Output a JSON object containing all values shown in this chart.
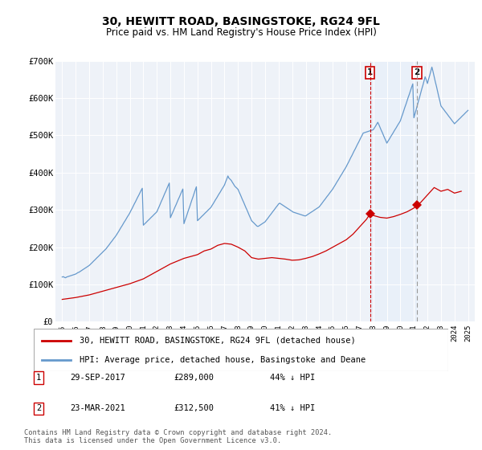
{
  "title": "30, HEWITT ROAD, BASINGSTOKE, RG24 9FL",
  "subtitle": "Price paid vs. HM Land Registry's House Price Index (HPI)",
  "hpi_color": "#6699cc",
  "price_color": "#cc0000",
  "marker_color": "#cc0000",
  "dashed_color_1": "#cc0000",
  "dashed_color_2": "#999999",
  "shade_color": "#ddeeff",
  "background_color": "#eef2f8",
  "grid_color": "#ffffff",
  "ylim": [
    0,
    700000
  ],
  "yticks": [
    0,
    100000,
    200000,
    300000,
    400000,
    500000,
    600000,
    700000
  ],
  "ytick_labels": [
    "£0",
    "£100K",
    "£200K",
    "£300K",
    "£400K",
    "£500K",
    "£600K",
    "£700K"
  ],
  "legend_entries": [
    "30, HEWITT ROAD, BASINGSTOKE, RG24 9FL (detached house)",
    "HPI: Average price, detached house, Basingstoke and Deane"
  ],
  "transactions": [
    {
      "label": "1",
      "date": "29-SEP-2017",
      "price": "£289,000",
      "hpi": "44% ↓ HPI",
      "year": 2017.75
    },
    {
      "label": "2",
      "date": "23-MAR-2021",
      "price": "£312,500",
      "hpi": "41% ↓ HPI",
      "year": 2021.22
    }
  ],
  "transaction_prices": [
    289000,
    312500
  ],
  "footer": "Contains HM Land Registry data © Crown copyright and database right 2024.\nThis data is licensed under the Open Government Licence v3.0.",
  "hpi_x": [
    1995.0,
    1995.08,
    1995.17,
    1995.25,
    1995.33,
    1995.42,
    1995.5,
    1995.58,
    1995.67,
    1995.75,
    1995.83,
    1995.92,
    1996.0,
    1996.08,
    1996.17,
    1996.25,
    1996.33,
    1996.42,
    1996.5,
    1996.58,
    1996.67,
    1996.75,
    1996.83,
    1996.92,
    1997.0,
    1997.08,
    1997.17,
    1997.25,
    1997.33,
    1997.42,
    1997.5,
    1997.58,
    1997.67,
    1997.75,
    1997.83,
    1997.92,
    1998.0,
    1998.08,
    1998.17,
    1998.25,
    1998.33,
    1998.42,
    1998.5,
    1998.58,
    1998.67,
    1998.75,
    1998.83,
    1998.92,
    1999.0,
    1999.08,
    1999.17,
    1999.25,
    1999.33,
    1999.42,
    1999.5,
    1999.58,
    1999.67,
    1999.75,
    1999.83,
    1999.92,
    2000.0,
    2000.08,
    2000.17,
    2000.25,
    2000.33,
    2000.42,
    2000.5,
    2000.58,
    2000.67,
    2000.75,
    2000.83,
    2000.92,
    2001.0,
    2001.08,
    2001.17,
    2001.25,
    2001.33,
    2001.42,
    2001.5,
    2001.58,
    2001.67,
    2001.75,
    2001.83,
    2001.92,
    2002.0,
    2002.08,
    2002.17,
    2002.25,
    2002.33,
    2002.42,
    2002.5,
    2002.58,
    2002.67,
    2002.75,
    2002.83,
    2002.92,
    2003.0,
    2003.08,
    2003.17,
    2003.25,
    2003.33,
    2003.42,
    2003.5,
    2003.58,
    2003.67,
    2003.75,
    2003.83,
    2003.92,
    2004.0,
    2004.08,
    2004.17,
    2004.25,
    2004.33,
    2004.42,
    2004.5,
    2004.58,
    2004.67,
    2004.75,
    2004.83,
    2004.92,
    2005.0,
    2005.08,
    2005.17,
    2005.25,
    2005.33,
    2005.42,
    2005.5,
    2005.58,
    2005.67,
    2005.75,
    2005.83,
    2005.92,
    2006.0,
    2006.08,
    2006.17,
    2006.25,
    2006.33,
    2006.42,
    2006.5,
    2006.58,
    2006.67,
    2006.75,
    2006.83,
    2006.92,
    2007.0,
    2007.08,
    2007.17,
    2007.25,
    2007.33,
    2007.42,
    2007.5,
    2007.58,
    2007.67,
    2007.75,
    2007.83,
    2007.92,
    2008.0,
    2008.08,
    2008.17,
    2008.25,
    2008.33,
    2008.42,
    2008.5,
    2008.58,
    2008.67,
    2008.75,
    2008.83,
    2008.92,
    2009.0,
    2009.08,
    2009.17,
    2009.25,
    2009.33,
    2009.42,
    2009.5,
    2009.58,
    2009.67,
    2009.75,
    2009.83,
    2009.92,
    2010.0,
    2010.08,
    2010.17,
    2010.25,
    2010.33,
    2010.42,
    2010.5,
    2010.58,
    2010.67,
    2010.75,
    2010.83,
    2010.92,
    2011.0,
    2011.08,
    2011.17,
    2011.25,
    2011.33,
    2011.42,
    2011.5,
    2011.58,
    2011.67,
    2011.75,
    2011.83,
    2011.92,
    2012.0,
    2012.08,
    2012.17,
    2012.25,
    2012.33,
    2012.42,
    2012.5,
    2012.58,
    2012.67,
    2012.75,
    2012.83,
    2012.92,
    2013.0,
    2013.08,
    2013.17,
    2013.25,
    2013.33,
    2013.42,
    2013.5,
    2013.58,
    2013.67,
    2013.75,
    2013.83,
    2013.92,
    2014.0,
    2014.08,
    2014.17,
    2014.25,
    2014.33,
    2014.42,
    2014.5,
    2014.58,
    2014.67,
    2014.75,
    2014.83,
    2014.92,
    2015.0,
    2015.08,
    2015.17,
    2015.25,
    2015.33,
    2015.42,
    2015.5,
    2015.58,
    2015.67,
    2015.75,
    2015.83,
    2015.92,
    2016.0,
    2016.08,
    2016.17,
    2016.25,
    2016.33,
    2016.42,
    2016.5,
    2016.58,
    2016.67,
    2016.75,
    2016.83,
    2016.92,
    2017.0,
    2017.08,
    2017.17,
    2017.25,
    2017.33,
    2017.42,
    2017.5,
    2017.58,
    2017.67,
    2017.75,
    2017.83,
    2017.92,
    2018.0,
    2018.08,
    2018.17,
    2018.25,
    2018.33,
    2018.42,
    2018.5,
    2018.58,
    2018.67,
    2018.75,
    2018.83,
    2018.92,
    2019.0,
    2019.08,
    2019.17,
    2019.25,
    2019.33,
    2019.42,
    2019.5,
    2019.58,
    2019.67,
    2019.75,
    2019.83,
    2019.92,
    2020.0,
    2020.08,
    2020.17,
    2020.25,
    2020.33,
    2020.42,
    2020.5,
    2020.58,
    2020.67,
    2020.75,
    2020.83,
    2020.92,
    2021.0,
    2021.08,
    2021.17,
    2021.25,
    2021.33,
    2021.42,
    2021.5,
    2021.58,
    2021.67,
    2021.75,
    2021.83,
    2021.92,
    2022.0,
    2022.08,
    2022.17,
    2022.25,
    2022.33,
    2022.42,
    2022.5,
    2022.58,
    2022.67,
    2022.75,
    2022.83,
    2022.92,
    2023.0,
    2023.08,
    2023.17,
    2023.25,
    2023.33,
    2023.42,
    2023.5,
    2023.58,
    2023.67,
    2023.75,
    2023.83,
    2023.92,
    2024.0,
    2024.08,
    2024.17,
    2024.25,
    2024.33,
    2024.42,
    2024.5,
    2024.58,
    2024.67,
    2024.75,
    2024.83,
    2024.92,
    2025.0
  ],
  "hpi_y": [
    120000,
    121000,
    119000,
    118000,
    120000,
    121000,
    122000,
    123000,
    124000,
    125000,
    126000,
    127000,
    128000,
    130000,
    132000,
    133000,
    135000,
    137000,
    139000,
    141000,
    143000,
    145000,
    147000,
    149000,
    151000,
    154000,
    157000,
    160000,
    163000,
    166000,
    169000,
    172000,
    175000,
    178000,
    181000,
    184000,
    187000,
    190000,
    193000,
    196000,
    200000,
    204000,
    208000,
    212000,
    216000,
    220000,
    224000,
    228000,
    232000,
    237000,
    242000,
    247000,
    252000,
    257000,
    262000,
    267000,
    272000,
    277000,
    282000,
    287000,
    292000,
    298000,
    304000,
    310000,
    316000,
    322000,
    328000,
    334000,
    340000,
    346000,
    352000,
    358000,
    259000,
    262000,
    265000,
    268000,
    271000,
    274000,
    277000,
    280000,
    283000,
    286000,
    289000,
    292000,
    295000,
    302000,
    309000,
    316000,
    323000,
    330000,
    337000,
    344000,
    351000,
    358000,
    365000,
    372000,
    279000,
    286000,
    293000,
    300000,
    307000,
    314000,
    321000,
    328000,
    335000,
    342000,
    349000,
    356000,
    263000,
    272000,
    281000,
    290000,
    299000,
    308000,
    317000,
    326000,
    335000,
    344000,
    353000,
    362000,
    271000,
    274000,
    277000,
    280000,
    283000,
    286000,
    289000,
    292000,
    295000,
    298000,
    301000,
    304000,
    307000,
    312000,
    317000,
    322000,
    327000,
    332000,
    337000,
    342000,
    347000,
    352000,
    357000,
    362000,
    367000,
    375000,
    383000,
    391000,
    385000,
    382000,
    379000,
    374000,
    369000,
    364000,
    361000,
    358000,
    355000,
    348000,
    341000,
    334000,
    327000,
    320000,
    313000,
    306000,
    299000,
    292000,
    285000,
    278000,
    271000,
    268000,
    265000,
    262000,
    259000,
    256000,
    256000,
    258000,
    260000,
    262000,
    264000,
    266000,
    268000,
    272000,
    276000,
    280000,
    284000,
    288000,
    292000,
    296000,
    300000,
    304000,
    308000,
    312000,
    316000,
    318000,
    316000,
    314000,
    312000,
    310000,
    308000,
    306000,
    304000,
    302000,
    300000,
    298000,
    296000,
    294000,
    293000,
    292000,
    291000,
    290000,
    289000,
    288000,
    287000,
    286000,
    285000,
    284000,
    284000,
    286000,
    288000,
    290000,
    292000,
    294000,
    296000,
    298000,
    300000,
    302000,
    304000,
    306000,
    308000,
    312000,
    316000,
    320000,
    324000,
    328000,
    332000,
    336000,
    340000,
    344000,
    348000,
    352000,
    356000,
    361000,
    366000,
    371000,
    376000,
    381000,
    386000,
    391000,
    396000,
    401000,
    406000,
    411000,
    416000,
    422000,
    428000,
    434000,
    440000,
    446000,
    452000,
    458000,
    464000,
    470000,
    476000,
    482000,
    488000,
    494000,
    500000,
    506000,
    507000,
    508000,
    509000,
    510000,
    511000,
    512000,
    513000,
    514000,
    515000,
    520000,
    525000,
    530000,
    535000,
    528000,
    521000,
    514000,
    507000,
    500000,
    493000,
    486000,
    479000,
    484000,
    489000,
    494000,
    499000,
    504000,
    509000,
    514000,
    519000,
    524000,
    529000,
    534000,
    539000,
    548000,
    557000,
    566000,
    575000,
    584000,
    593000,
    602000,
    611000,
    620000,
    629000,
    638000,
    547000,
    558000,
    569000,
    580000,
    591000,
    602000,
    613000,
    624000,
    635000,
    646000,
    657000,
    648000,
    639000,
    650000,
    661000,
    672000,
    683000,
    670000,
    657000,
    644000,
    631000,
    618000,
    605000,
    592000,
    579000,
    575000,
    571000,
    567000,
    563000,
    559000,
    555000,
    551000,
    547000,
    543000,
    539000,
    535000,
    531000,
    534000,
    537000,
    540000,
    543000,
    546000,
    549000,
    552000,
    555000,
    558000,
    561000,
    564000,
    567000
  ],
  "price_x": [
    1995.0,
    1996.0,
    1997.0,
    1998.0,
    1999.0,
    2000.0,
    2001.0,
    2002.0,
    2003.0,
    2004.0,
    2005.0,
    2005.5,
    2006.0,
    2006.5,
    2007.0,
    2007.5,
    2008.0,
    2008.5,
    2009.0,
    2009.5,
    2010.0,
    2010.5,
    2011.0,
    2011.5,
    2012.0,
    2012.5,
    2013.0,
    2013.5,
    2014.0,
    2014.5,
    2015.0,
    2015.5,
    2016.0,
    2016.5,
    2017.0,
    2017.5,
    2017.75,
    2018.0,
    2018.5,
    2019.0,
    2019.5,
    2020.0,
    2020.5,
    2021.0,
    2021.22,
    2021.5,
    2022.0,
    2022.5,
    2023.0,
    2023.5,
    2024.0,
    2024.5
  ],
  "price_y": [
    60000,
    65000,
    72000,
    82000,
    92000,
    102000,
    115000,
    135000,
    155000,
    170000,
    180000,
    190000,
    195000,
    205000,
    210000,
    208000,
    200000,
    190000,
    172000,
    168000,
    170000,
    172000,
    170000,
    168000,
    165000,
    166000,
    170000,
    175000,
    182000,
    190000,
    200000,
    210000,
    220000,
    235000,
    255000,
    275000,
    289000,
    285000,
    280000,
    278000,
    282000,
    288000,
    295000,
    305000,
    312500,
    320000,
    340000,
    360000,
    350000,
    355000,
    345000,
    350000
  ]
}
